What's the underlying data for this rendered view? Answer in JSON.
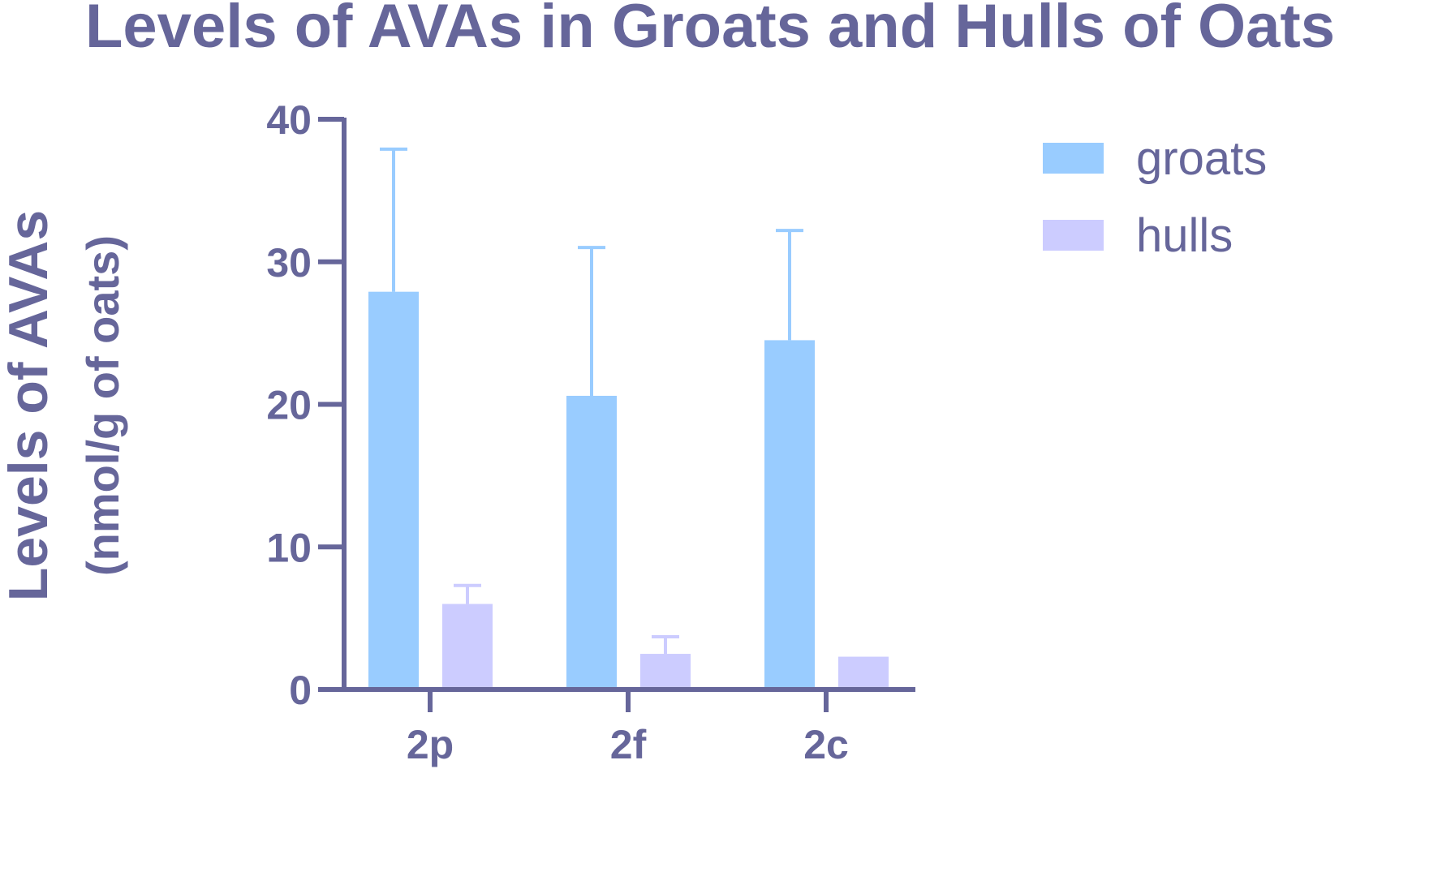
{
  "chart_data": {
    "type": "bar",
    "title": "Levels of AVAs in Groats and Hulls of Oats",
    "ylabel": "Levels of AVAs",
    "ylabel_units": "(nmol/g of oats)",
    "xlabel": "",
    "categories": [
      "2p",
      "2f",
      "2c"
    ],
    "series": [
      {
        "name": "groats",
        "color": "#99ccff",
        "values": [
          27.9,
          20.6,
          24.5
        ],
        "error_upper": [
          37.9,
          31.0,
          32.2
        ]
      },
      {
        "name": "hulls",
        "color": "#ccccff",
        "values": [
          6.0,
          2.5,
          2.3
        ],
        "error_upper": [
          7.3,
          3.7,
          null
        ]
      }
    ],
    "ylim": [
      0,
      40
    ],
    "yticks": [
      0,
      10,
      20,
      30,
      40
    ],
    "ytick_labels": [
      "0",
      "10",
      "20",
      "30",
      "40"
    ],
    "grid": false,
    "legend_position": "top-right",
    "axis_color": "#66669a",
    "text_color": "#66669a"
  }
}
